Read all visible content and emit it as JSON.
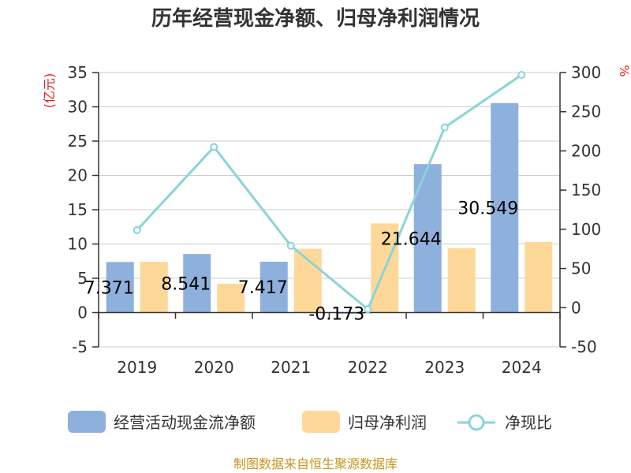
{
  "chart_data": {
    "type": "bar+line",
    "title": "历年经营现金净额、归母净利润情况",
    "categories": [
      "2019",
      "2020",
      "2021",
      "2022",
      "2023",
      "2024"
    ],
    "series": [
      {
        "name": "经营活动现金流净额",
        "type": "bar",
        "axis": "left",
        "values": [
          7.371,
          8.541,
          7.417,
          -0.173,
          21.644,
          30.549
        ],
        "labels_shown": true
      },
      {
        "name": "归母净利润",
        "type": "bar",
        "axis": "left",
        "values": [
          7.4,
          4.2,
          9.3,
          13.0,
          9.4,
          10.3
        ],
        "labels_shown": false
      },
      {
        "name": "净现比",
        "type": "line",
        "axis": "right",
        "values": [
          99,
          205,
          79,
          -2,
          230,
          297
        ],
        "labels_shown": false
      }
    ],
    "y_left": {
      "label": "(亿元)",
      "min": -5,
      "max": 35,
      "ticks": [
        "-5",
        "0",
        "5",
        "10",
        "15",
        "20",
        "25",
        "30",
        "35"
      ]
    },
    "y_right": {
      "label": "%",
      "min": -50,
      "max": 300,
      "ticks": [
        "-50",
        "0",
        "50",
        "100",
        "150",
        "200",
        "250",
        "300"
      ]
    },
    "colors": {
      "cash_flow": "#8eb0dc",
      "net_profit": "#fdd899",
      "ratio": "#8ad4d8",
      "unit": "#e02020",
      "source": "#c8951e"
    },
    "legend_position": "bottom",
    "grid": true
  },
  "source_text": "制图数据来自恒生聚源数据库"
}
